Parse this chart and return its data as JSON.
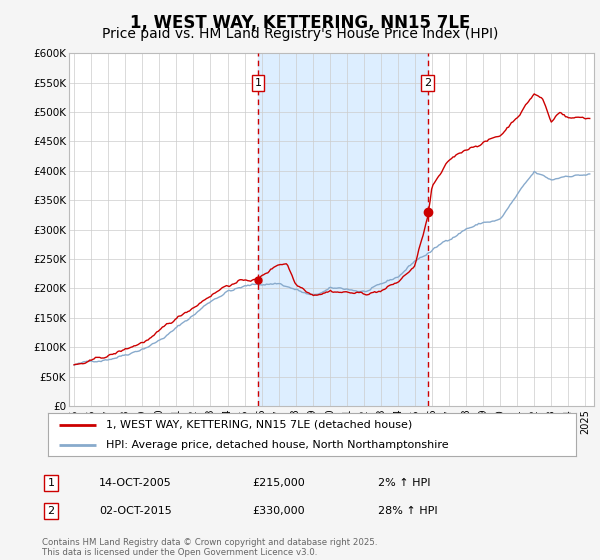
{
  "title": "1, WEST WAY, KETTERING, NN15 7LE",
  "subtitle": "Price paid vs. HM Land Registry's House Price Index (HPI)",
  "ylim": [
    0,
    600000
  ],
  "yticks": [
    0,
    50000,
    100000,
    150000,
    200000,
    250000,
    300000,
    350000,
    400000,
    450000,
    500000,
    550000,
    600000
  ],
  "ytick_labels": [
    "£0",
    "£50K",
    "£100K",
    "£150K",
    "£200K",
    "£250K",
    "£300K",
    "£350K",
    "£400K",
    "£450K",
    "£500K",
    "£550K",
    "£600K"
  ],
  "xlim_start": 1994.7,
  "xlim_end": 2025.5,
  "xticks": [
    1995,
    1996,
    1997,
    1998,
    1999,
    2000,
    2001,
    2002,
    2003,
    2004,
    2005,
    2006,
    2007,
    2008,
    2009,
    2010,
    2011,
    2012,
    2013,
    2014,
    2015,
    2016,
    2017,
    2018,
    2019,
    2020,
    2021,
    2022,
    2023,
    2024,
    2025
  ],
  "red_line_color": "#cc0000",
  "blue_line_color": "#88aacc",
  "vline1_x": 2005.79,
  "vline2_x": 2015.75,
  "vline_color": "#cc0000",
  "shade_color": "#ddeeff",
  "marker1_label": "1",
  "marker2_label": "2",
  "sale1_date": "14-OCT-2005",
  "sale1_price": "£215,000",
  "sale1_hpi": "2% ↑ HPI",
  "sale2_date": "02-OCT-2015",
  "sale2_price": "£330,000",
  "sale2_hpi": "28% ↑ HPI",
  "sale1_y": 215000,
  "sale2_y": 330000,
  "legend_line1": "1, WEST WAY, KETTERING, NN15 7LE (detached house)",
  "legend_line2": "HPI: Average price, detached house, North Northamptonshire",
  "copyright_text": "Contains HM Land Registry data © Crown copyright and database right 2025.\nThis data is licensed under the Open Government Licence v3.0.",
  "bg_color": "#f5f5f5",
  "plot_bg_color": "#ffffff",
  "title_fontsize": 12,
  "subtitle_fontsize": 10
}
